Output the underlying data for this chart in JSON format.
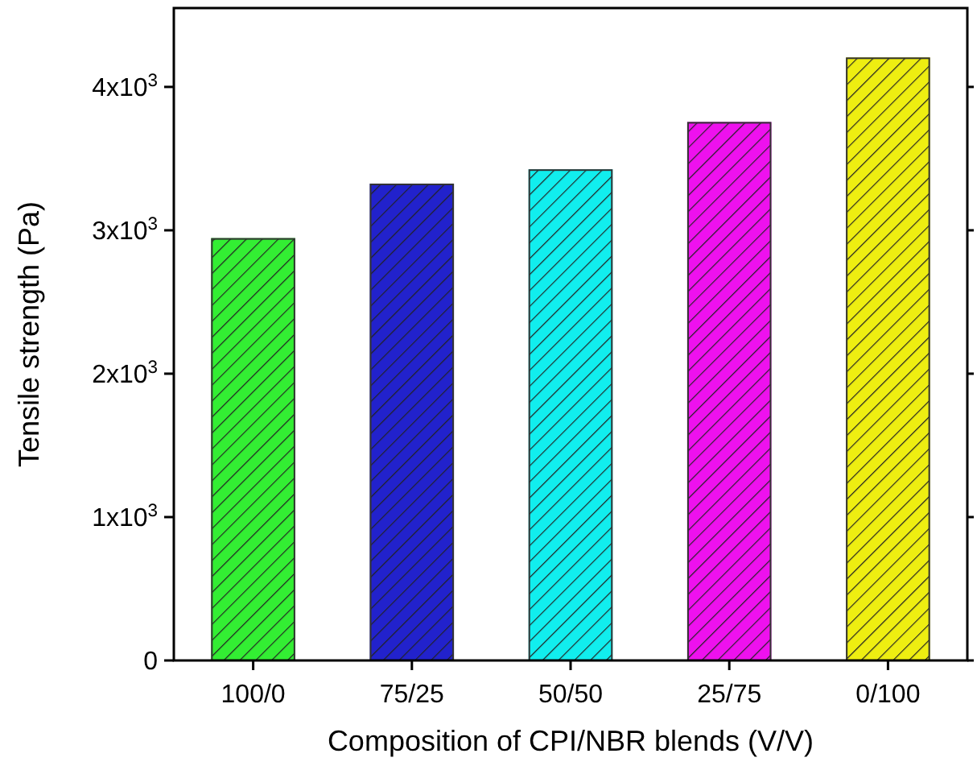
{
  "chart_data": {
    "type": "bar",
    "xlabel": "Composition of CPI/NBR blends (V/V)",
    "ylabel": "Tensile strength (Pa)",
    "categories": [
      "100/0",
      "75/25",
      "50/50",
      "25/75",
      "0/100"
    ],
    "values": [
      2940,
      3320,
      3420,
      3750,
      4200
    ],
    "colors": [
      "#33ee33",
      "#2222cc",
      "#11eeee",
      "#ee11ee",
      "#eeee11"
    ],
    "ylim": [
      0,
      4550
    ],
    "yticks": [
      0,
      {
        "value": 1000,
        "label": "1x10$^{3}$"
      },
      {
        "value": 2000,
        "label": "2x10$^{3}$"
      },
      {
        "value": 3000,
        "label": "3x10$^{3}$"
      },
      {
        "value": 4000,
        "label": "4x10$^{3}$"
      }
    ],
    "grid": false
  }
}
